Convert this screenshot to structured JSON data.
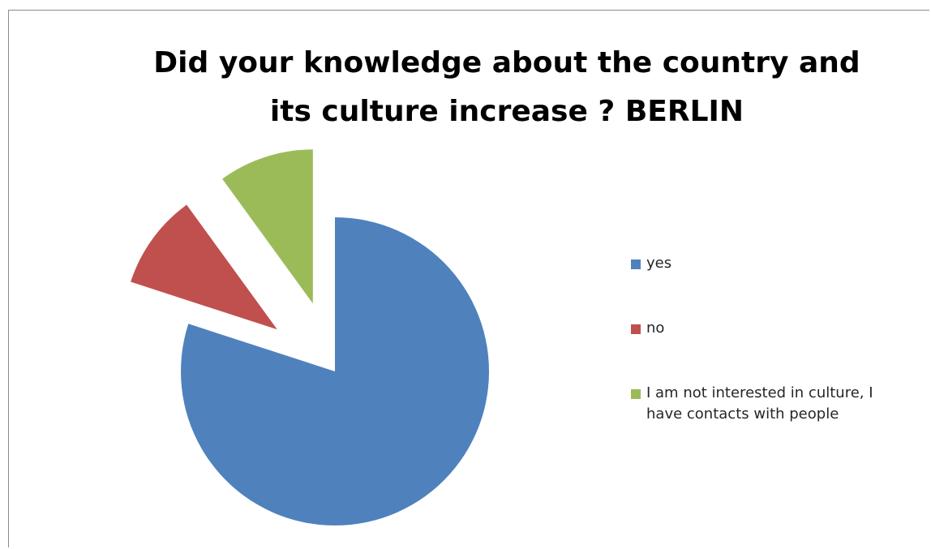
{
  "chart_data": {
    "type": "pie",
    "title": "Did your knowledge about the country and its culture increase ? BERLIN",
    "title_lines": [
      "Did your knowledge about the country and",
      "its culture increase ? BERLIN"
    ],
    "start_angle_deg": 0,
    "direction": "clockwise",
    "exploded": true,
    "legend_position": "right",
    "series": [
      {
        "name": "yes",
        "value": 80,
        "color": "#4f81bd"
      },
      {
        "name": "no",
        "value": 10,
        "color": "#c0504d"
      },
      {
        "name": "I am not interested in culture, I have contacts with people",
        "value": 10,
        "color": "#9bbb59"
      }
    ]
  },
  "legend": {
    "items": [
      {
        "label": "yes",
        "color": "#4f81bd"
      },
      {
        "label": "no",
        "color": "#c0504d"
      },
      {
        "label": "I am not interested in culture, I have contacts with people",
        "color": "#9bbb59"
      }
    ]
  }
}
